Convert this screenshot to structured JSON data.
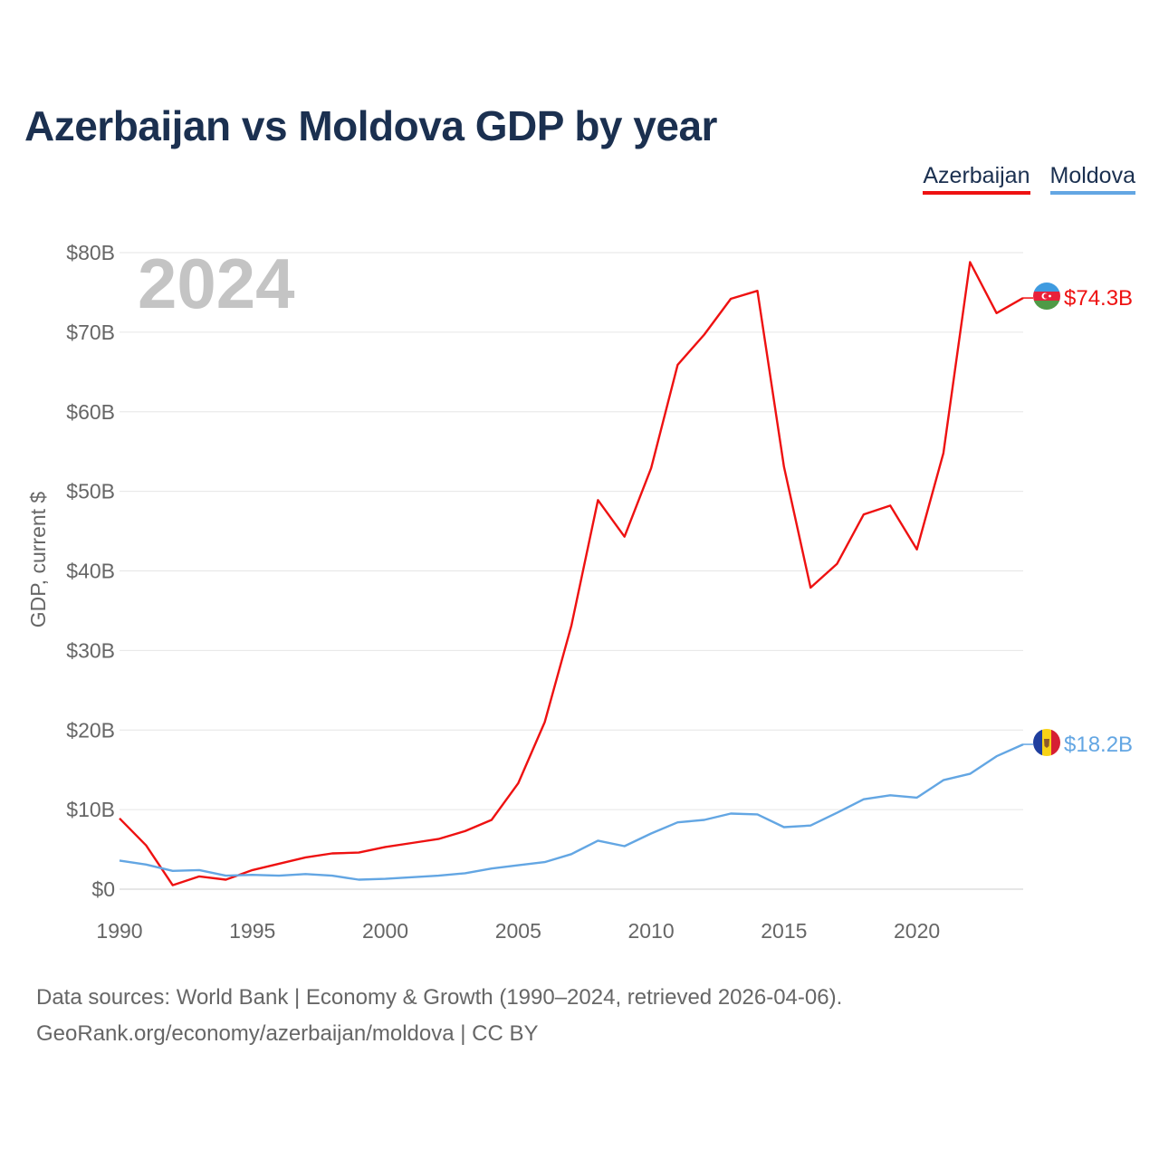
{
  "chart_data": {
    "type": "line",
    "title": "Azerbaijan vs Moldova GDP by year",
    "ylabel": "GDP, current $",
    "xlabel": "",
    "current_year": "2024",
    "xlim": [
      1990,
      2024
    ],
    "ylim": [
      0,
      80
    ],
    "x_ticks": [
      1990,
      1995,
      2000,
      2005,
      2010,
      2015,
      2020
    ],
    "x_tick_labels": [
      "1990",
      "1995",
      "2000",
      "2005",
      "2010",
      "2015",
      "2020"
    ],
    "y_ticks": [
      0,
      10,
      20,
      30,
      40,
      50,
      60,
      70,
      80
    ],
    "y_tick_labels": [
      "$0",
      "$10B",
      "$20B",
      "$30B",
      "$40B",
      "$50B",
      "$60B",
      "$70B",
      "$80B"
    ],
    "x": [
      1990,
      1991,
      1992,
      1993,
      1994,
      1995,
      1996,
      1997,
      1998,
      1999,
      2000,
      2001,
      2002,
      2003,
      2004,
      2005,
      2006,
      2007,
      2008,
      2009,
      2010,
      2011,
      2012,
      2013,
      2014,
      2015,
      2016,
      2017,
      2018,
      2019,
      2020,
      2021,
      2022,
      2023,
      2024
    ],
    "series": [
      {
        "name": "Azerbaijan",
        "color": "#ee1111",
        "end_label": "$74.3B",
        "values": [
          8.9,
          5.5,
          0.5,
          1.6,
          1.2,
          2.4,
          3.2,
          4.0,
          4.5,
          4.6,
          5.3,
          5.8,
          6.3,
          7.3,
          8.7,
          13.3,
          21.0,
          33.1,
          48.9,
          44.3,
          52.9,
          65.9,
          69.7,
          74.2,
          75.2,
          53.1,
          37.9,
          40.9,
          47.1,
          48.2,
          42.7,
          54.8,
          78.8,
          72.4,
          74.3
        ]
      },
      {
        "name": "Moldova",
        "color": "#63a6e3",
        "end_label": "$18.2B",
        "values": [
          3.6,
          3.1,
          2.3,
          2.4,
          1.7,
          1.8,
          1.7,
          1.9,
          1.7,
          1.2,
          1.3,
          1.5,
          1.7,
          2.0,
          2.6,
          3.0,
          3.4,
          4.4,
          6.1,
          5.4,
          7.0,
          8.4,
          8.7,
          9.5,
          9.4,
          7.8,
          8.0,
          9.6,
          11.3,
          11.8,
          11.5,
          13.7,
          14.5,
          16.7,
          18.2
        ]
      }
    ],
    "legend_position": "top-right",
    "grid": true
  },
  "source": {
    "line1": "Data sources: World Bank | Economy & Growth (1990–2024, retrieved 2026-04-06).",
    "line2": "GeoRank.org/economy/azerbaijan/moldova | CC BY"
  }
}
